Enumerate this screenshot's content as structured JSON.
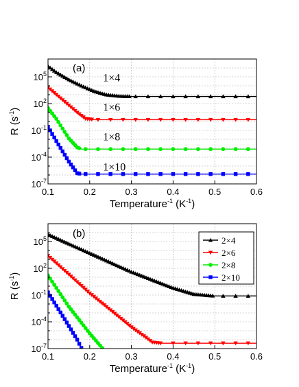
{
  "chart_data": [
    {
      "type": "line",
      "panel": "(a)",
      "xlabel": "Temperature",
      "xlabel_sup": "-1",
      "xlabel_unit": " (K",
      "xlabel_unit_sup": "-1",
      "xlabel_close": ")",
      "ylabel": "R (s",
      "ylabel_sup": "-1",
      "ylabel_close": ")",
      "xlim": [
        0.1,
        0.6
      ],
      "ylim_log10": [
        -7,
        7
      ],
      "y_scale": "log",
      "grid": true,
      "x_ticks": [
        "0.1",
        "0.2",
        "0.3",
        "0.4",
        "0.5",
        "0.6"
      ],
      "y_ticks": [
        {
          "base": "10",
          "exp": "-7",
          "log": -7
        },
        {
          "base": "10",
          "exp": "-4",
          "log": -4
        },
        {
          "base": "10",
          "exp": "-1",
          "log": -1
        },
        {
          "base": "10",
          "exp": "2",
          "log": 2
        },
        {
          "base": "10",
          "exp": "5",
          "log": 5
        }
      ],
      "series": [
        {
          "name": "1×4",
          "color": "#000000",
          "marker": "triangle-up",
          "label_x": 0.232,
          "label_log": 4.5,
          "points": [
            [
              0.1,
              6.2
            ],
            [
              0.12,
              5.5
            ],
            [
              0.15,
              4.7
            ],
            [
              0.18,
              4.0
            ],
            [
              0.21,
              3.4
            ],
            [
              0.24,
              3.0
            ],
            [
              0.27,
              2.85
            ],
            [
              0.3,
              2.8
            ],
            [
              0.6,
              2.8
            ]
          ]
        },
        {
          "name": "1×6",
          "color": "#ff0000",
          "marker": "triangle-down",
          "label_x": 0.232,
          "label_log": 1.2,
          "points": [
            [
              0.1,
              3.8
            ],
            [
              0.12,
              3.0
            ],
            [
              0.15,
              1.8
            ],
            [
              0.17,
              1.0
            ],
            [
              0.19,
              0.3
            ],
            [
              0.21,
              0.2
            ],
            [
              0.6,
              0.2
            ]
          ]
        },
        {
          "name": "1×8",
          "color": "#00ee00",
          "marker": "circle",
          "label_x": 0.232,
          "label_log": -2.1,
          "points": [
            [
              0.1,
              1.5
            ],
            [
              0.12,
              0.3
            ],
            [
              0.15,
              -1.9
            ],
            [
              0.17,
              -2.9
            ],
            [
              0.18,
              -3.1
            ],
            [
              0.6,
              -3.1
            ]
          ]
        },
        {
          "name": "1×10",
          "color": "#0000ff",
          "marker": "square",
          "label_x": 0.232,
          "label_log": -5.5,
          "points": [
            [
              0.1,
              -0.6
            ],
            [
              0.12,
              -2.2
            ],
            [
              0.15,
              -4.5
            ],
            [
              0.17,
              -5.8
            ],
            [
              0.18,
              -5.9
            ],
            [
              0.6,
              -5.9
            ]
          ]
        }
      ]
    },
    {
      "type": "line",
      "panel": "(b)",
      "xlabel": "Temperature",
      "xlabel_sup": "-1",
      "xlabel_unit": " (K",
      "xlabel_unit_sup": "-1",
      "xlabel_close": ")",
      "ylabel": "R (s",
      "ylabel_sup": "-1",
      "ylabel_close": ")",
      "xlim": [
        0.1,
        0.6
      ],
      "ylim_log10": [
        -7,
        7
      ],
      "y_scale": "log",
      "grid": true,
      "legend_position": "top-right",
      "x_ticks": [
        "0.1",
        "0.2",
        "0.3",
        "0.4",
        "0.5",
        "0.6"
      ],
      "y_ticks": [
        {
          "base": "10",
          "exp": "-7",
          "log": -7
        },
        {
          "base": "10",
          "exp": "-4",
          "log": -4
        },
        {
          "base": "10",
          "exp": "-1",
          "log": -1
        },
        {
          "base": "10",
          "exp": "2",
          "log": 2
        },
        {
          "base": "10",
          "exp": "5",
          "log": 5
        }
      ],
      "series": [
        {
          "name": "2×4",
          "color": "#000000",
          "marker": "triangle-up",
          "points": [
            [
              0.1,
              5.8
            ],
            [
              0.2,
              3.7
            ],
            [
              0.3,
              1.6
            ],
            [
              0.4,
              -0.2
            ],
            [
              0.45,
              -0.9
            ],
            [
              0.5,
              -1.1
            ],
            [
              0.6,
              -1.1
            ]
          ]
        },
        {
          "name": "2×6",
          "color": "#ff0000",
          "marker": "triangle-down",
          "points": [
            [
              0.1,
              3.4
            ],
            [
              0.2,
              -0.8
            ],
            [
              0.3,
              -4.6
            ],
            [
              0.33,
              -5.6
            ],
            [
              0.35,
              -6.3
            ],
            [
              0.37,
              -6.4
            ],
            [
              0.6,
              -6.4
            ]
          ]
        },
        {
          "name": "2×8",
          "color": "#00ee00",
          "marker": "circle",
          "points": [
            [
              0.1,
              1.2
            ],
            [
              0.15,
              -2.3
            ],
            [
              0.2,
              -5.3
            ],
            [
              0.235,
              -7.2
            ]
          ]
        },
        {
          "name": "2×10",
          "color": "#0000ff",
          "marker": "square",
          "points": [
            [
              0.1,
              -0.7
            ],
            [
              0.14,
              -3.7
            ],
            [
              0.17,
              -6.0
            ],
            [
              0.183,
              -7.2
            ]
          ]
        }
      ]
    }
  ]
}
